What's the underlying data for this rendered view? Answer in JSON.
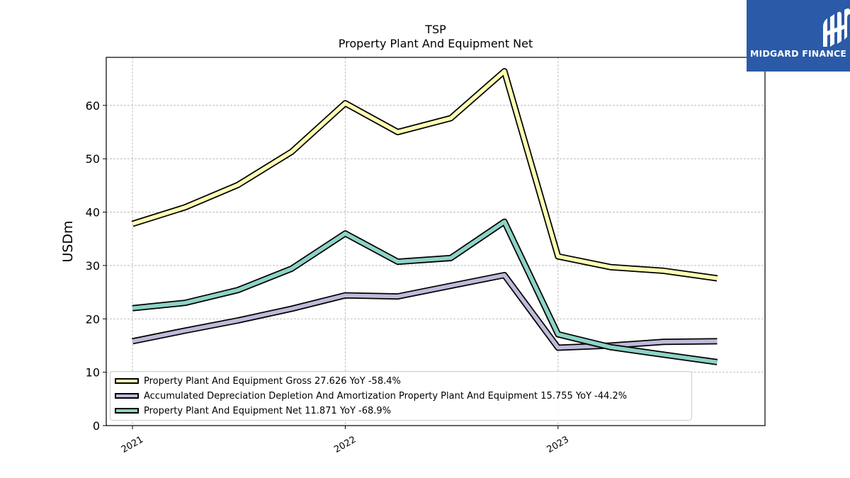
{
  "chart_data": {
    "type": "line",
    "title": "TSP",
    "subtitle": "Property Plant And Equipment Net",
    "ylabel": "USDm",
    "xlabel": "",
    "ylim": [
      0,
      69
    ],
    "yticks": [
      0,
      10,
      20,
      30,
      40,
      50,
      60
    ],
    "x": [
      "2021-01-01",
      "2021-04-01",
      "2021-07-01",
      "2021-10-01",
      "2022-01-01",
      "2022-04-01",
      "2022-07-01",
      "2022-10-01",
      "2023-01-01",
      "2023-04-01",
      "2023-07-01",
      "2023-10-01"
    ],
    "xlim": [
      "2020-11-17",
      "2023-12-22"
    ],
    "xticks": [
      {
        "date": "2021-01-01",
        "label": "2021"
      },
      {
        "date": "2022-01-01",
        "label": "2022"
      },
      {
        "date": "2023-01-01",
        "label": "2023"
      }
    ],
    "grid": true,
    "legend_position": "bottom-left",
    "series": [
      {
        "name": "Property Plant And Equipment Gross",
        "legend_label": "Property Plant And Equipment Gross  27.626 YoY -58.4%",
        "color": "#ffffb3",
        "values": [
          37.8,
          40.9,
          45.1,
          51.3,
          60.4,
          55.0,
          57.6,
          66.4,
          31.7,
          29.7,
          29.0,
          27.6
        ]
      },
      {
        "name": "Accumulated Depreciation Depletion And Amortization Property Plant And Equipment",
        "legend_label": "Accumulated Depreciation Depletion And Amortization Property Plant And Equipment  15.755 YoY -44.2%",
        "color": "#bebada",
        "values": [
          15.8,
          17.8,
          19.7,
          21.9,
          24.4,
          24.2,
          26.2,
          28.2,
          14.6,
          15.0,
          15.7,
          15.8
        ]
      },
      {
        "name": "Property Plant And Equipment Net",
        "legend_label": "Property Plant And Equipment Net  11.871 YoY -68.9%",
        "color": "#8dd3c7",
        "values": [
          22.0,
          23.0,
          25.4,
          29.4,
          36.0,
          30.7,
          31.4,
          38.2,
          17.1,
          14.7,
          13.3,
          11.9
        ]
      }
    ]
  },
  "logo": {
    "text": "MIDGARD FINANCE",
    "color": "#2a5aa8"
  }
}
